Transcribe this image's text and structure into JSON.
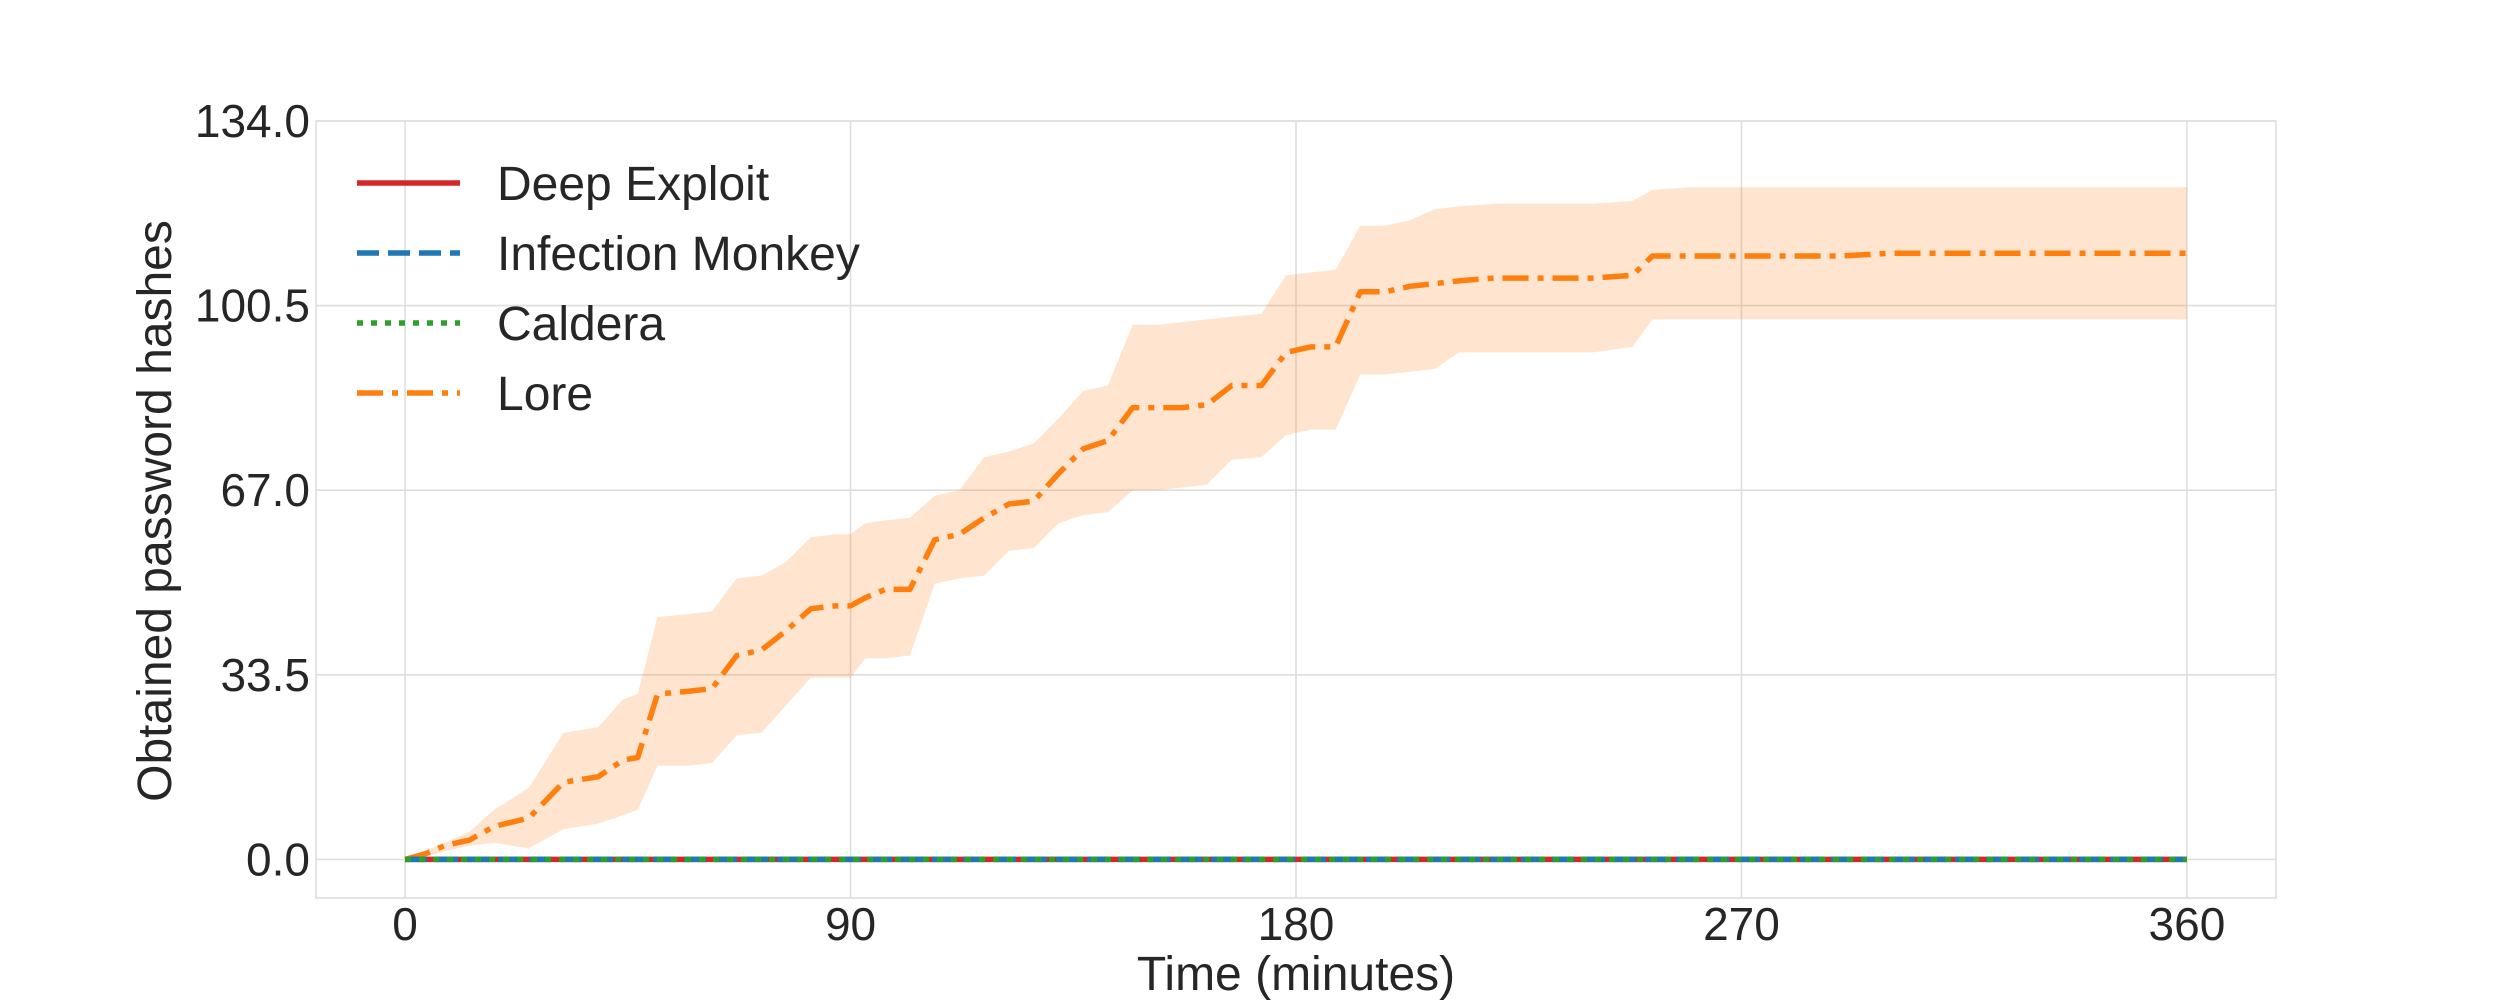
{
  "chart_data": {
    "type": "line",
    "title": "",
    "xlabel": "Time (minutes)",
    "ylabel": "Obtained password hashes",
    "xlim": [
      -18,
      378
    ],
    "ylim": [
      -7,
      134
    ],
    "xticks": [
      "0",
      "90",
      "180",
      "270",
      "360"
    ],
    "yticks": [
      "0.0",
      "33.5",
      "67.0",
      "100.5",
      "134.0"
    ],
    "grid": true,
    "legend_position": "top-left",
    "series": [
      {
        "name": "Deep Exploit",
        "color": "#d62728",
        "style": "solid",
        "x": [
          0,
          360
        ],
        "y": [
          0,
          0
        ]
      },
      {
        "name": "Infection Monkey",
        "color": "#1f77b4",
        "style": "dashed",
        "x": [
          0,
          360
        ],
        "y": [
          0,
          0
        ]
      },
      {
        "name": "Caldera",
        "color": "#2ca02c",
        "style": "dotted",
        "x": [
          0,
          360
        ],
        "y": [
          0,
          0
        ]
      },
      {
        "name": "Lore",
        "color": "#ff7f0e",
        "style": "dashdot",
        "x": [
          0,
          4,
          8,
          13,
          18,
          25,
          32,
          39,
          44,
          47,
          51,
          57,
          62,
          67,
          72,
          77,
          82,
          87,
          90,
          93,
          97,
          102,
          107,
          112,
          117,
          122,
          127,
          132,
          137,
          142,
          147,
          152,
          157,
          162,
          167,
          173,
          178,
          183,
          188,
          193,
          198,
          203,
          208,
          213,
          220,
          230,
          240,
          248,
          252,
          260,
          270,
          280,
          290,
          300,
          310,
          320,
          330,
          340,
          350,
          360
        ],
        "y": [
          0,
          1,
          2.5,
          3.5,
          6,
          7.5,
          14,
          15,
          18,
          18.5,
          30,
          30.5,
          31,
          37,
          38,
          41.5,
          45.5,
          46,
          46,
          47.5,
          49,
          49,
          58,
          59,
          62,
          64.5,
          65,
          70,
          74.5,
          76,
          82,
          82,
          82,
          82.5,
          86,
          86,
          92,
          93,
          93,
          103,
          103,
          104,
          104.5,
          105,
          105.5,
          105.5,
          105.5,
          106,
          109.5,
          109.5,
          109.5,
          109.5,
          109.5,
          110,
          110,
          110,
          110,
          110,
          110,
          110
        ],
        "band_upper": [
          0,
          1.5,
          3,
          5,
          9,
          13,
          23,
          24,
          29,
          30,
          44,
          44.5,
          45,
          51,
          51.5,
          54,
          58.5,
          59,
          59,
          61,
          61.5,
          62,
          66,
          67,
          73,
          74,
          75.5,
          80,
          85,
          86,
          97,
          97,
          97.5,
          98,
          98.5,
          99,
          106,
          106.5,
          107,
          115,
          115,
          116,
          118,
          118.5,
          119,
          119,
          119,
          119.5,
          121.5,
          122,
          122,
          122,
          122,
          122,
          122,
          122,
          122,
          122,
          122,
          122
        ],
        "band_lower": [
          0,
          0.5,
          1.5,
          2.5,
          3,
          2,
          5.5,
          6.5,
          8,
          9,
          17,
          17,
          17.5,
          22.5,
          23,
          28,
          33,
          33,
          33,
          36.5,
          36.5,
          37,
          50,
          51,
          51.5,
          56,
          56.5,
          61,
          62.5,
          63,
          67,
          67,
          67.5,
          68,
          72.5,
          73,
          77,
          78,
          78,
          88,
          88,
          88.5,
          89,
          92,
          92,
          92,
          92,
          93,
          98,
          98,
          98,
          98,
          98,
          98,
          98,
          98,
          98,
          98,
          98,
          98
        ]
      }
    ]
  }
}
